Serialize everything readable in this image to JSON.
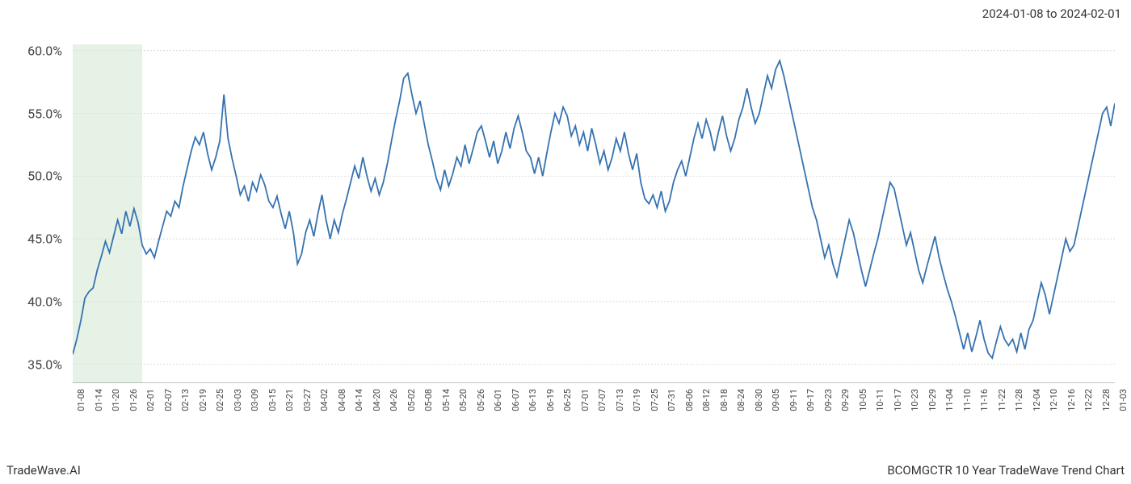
{
  "header": {
    "date_range": "2024-01-08 to 2024-02-01"
  },
  "footer": {
    "left": "TradeWave.AI",
    "right": "BCOMGCTR 10 Year TradeWave Trend Chart"
  },
  "chart": {
    "type": "line",
    "background_color": "#ffffff",
    "line_color": "#3572b0",
    "line_width": 1.8,
    "grid_color": "#cccccc",
    "highlight_color": "#d4e8d4",
    "highlight_opacity": 0.55,
    "text_color": "#444444",
    "y_axis": {
      "min": 33.5,
      "max": 60.5,
      "ticks": [
        35.0,
        40.0,
        45.0,
        50.0,
        55.0,
        60.0
      ],
      "tick_labels": [
        "35.0%",
        "40.0%",
        "45.0%",
        "50.0%",
        "55.0%",
        "60.0%"
      ],
      "label_fontsize": 16
    },
    "x_axis": {
      "labels": [
        "01-08",
        "01-14",
        "01-20",
        "01-26",
        "02-01",
        "02-07",
        "02-13",
        "02-19",
        "02-25",
        "03-03",
        "03-09",
        "03-15",
        "03-21",
        "03-27",
        "04-02",
        "04-08",
        "04-14",
        "04-20",
        "04-26",
        "05-02",
        "05-08",
        "05-14",
        "05-20",
        "05-26",
        "06-01",
        "06-07",
        "06-13",
        "06-19",
        "06-25",
        "07-01",
        "07-07",
        "07-13",
        "07-19",
        "07-25",
        "07-31",
        "08-06",
        "08-12",
        "08-18",
        "08-24",
        "08-30",
        "09-05",
        "09-11",
        "09-17",
        "09-23",
        "09-29",
        "10-05",
        "10-11",
        "10-17",
        "10-23",
        "10-29",
        "11-04",
        "11-10",
        "11-16",
        "11-22",
        "11-28",
        "12-04",
        "12-10",
        "12-16",
        "12-22",
        "12-28",
        "01-03"
      ],
      "label_fontsize": 11
    },
    "highlight_band": {
      "start_index": 0,
      "end_index": 4
    },
    "series": {
      "data": [
        35.8,
        37.0,
        38.5,
        40.3,
        40.8,
        41.1,
        42.5,
        43.6,
        44.8,
        43.9,
        45.2,
        46.5,
        45.4,
        47.2,
        46.0,
        47.4,
        46.3,
        44.5,
        43.8,
        44.2,
        43.5,
        44.8,
        46.0,
        47.2,
        46.8,
        48.0,
        47.5,
        49.2,
        50.6,
        52.0,
        53.1,
        52.5,
        53.5,
        51.8,
        50.5,
        51.5,
        52.8,
        56.5,
        53.0,
        51.4,
        50.0,
        48.5,
        49.2,
        48.0,
        49.5,
        48.8,
        50.1,
        49.3,
        48.0,
        47.5,
        48.4,
        47.0,
        45.8,
        47.2,
        45.5,
        43.0,
        43.8,
        45.5,
        46.5,
        45.2,
        47.0,
        48.5,
        46.5,
        45.0,
        46.5,
        45.5,
        47.0,
        48.2,
        49.5,
        50.8,
        49.8,
        51.5,
        50.0,
        48.8,
        49.8,
        48.5,
        49.5,
        51.0,
        52.8,
        54.5,
        56.0,
        57.8,
        58.2,
        56.5,
        55.0,
        56.0,
        54.2,
        52.5,
        51.2,
        49.8,
        48.9,
        50.5,
        49.2,
        50.2,
        51.5,
        50.8,
        52.5,
        51.0,
        52.2,
        53.5,
        54.0,
        52.8,
        51.5,
        52.8,
        51.0,
        52.0,
        53.5,
        52.2,
        53.8,
        54.8,
        53.5,
        52.0,
        51.5,
        50.2,
        51.5,
        50.0,
        51.8,
        53.5,
        55.0,
        54.2,
        55.5,
        54.8,
        53.2,
        54.0,
        52.5,
        53.5,
        52.0,
        53.8,
        52.5,
        51.0,
        52.0,
        50.5,
        51.5,
        53.0,
        52.0,
        53.5,
        51.8,
        50.5,
        51.8,
        49.5,
        48.2,
        47.8,
        48.5,
        47.5,
        48.8,
        47.2,
        48.0,
        49.5,
        50.5,
        51.2,
        50.0,
        51.5,
        53.0,
        54.2,
        53.0,
        54.5,
        53.5,
        52.0,
        53.5,
        54.8,
        53.2,
        52.0,
        53.0,
        54.5,
        55.5,
        57.0,
        55.5,
        54.2,
        55.0,
        56.5,
        58.0,
        57.0,
        58.5,
        59.2,
        58.0,
        56.5,
        55.0,
        53.5,
        52.0,
        50.5,
        49.0,
        47.5,
        46.5,
        45.0,
        43.5,
        44.5,
        43.0,
        42.0,
        43.5,
        45.0,
        46.5,
        45.5,
        44.0,
        42.5,
        41.2,
        42.5,
        43.8,
        45.0,
        46.5,
        48.0,
        49.5,
        49.0,
        47.5,
        46.0,
        44.5,
        45.5,
        44.0,
        42.5,
        41.5,
        42.8,
        44.0,
        45.2,
        43.5,
        42.2,
        41.0,
        40.0,
        38.8,
        37.5,
        36.2,
        37.5,
        36.0,
        37.2,
        38.5,
        37.0,
        35.9,
        35.5,
        36.8,
        38.0,
        37.0,
        36.5,
        37.0,
        36.0,
        37.5,
        36.2,
        37.8,
        38.5,
        40.0,
        41.5,
        40.5,
        39.0,
        40.5,
        42.0,
        43.5,
        45.0,
        44.0,
        44.5,
        46.0,
        47.5,
        49.0,
        50.5,
        52.0,
        53.5,
        55.0,
        55.5,
        54.0,
        55.8
      ]
    }
  }
}
